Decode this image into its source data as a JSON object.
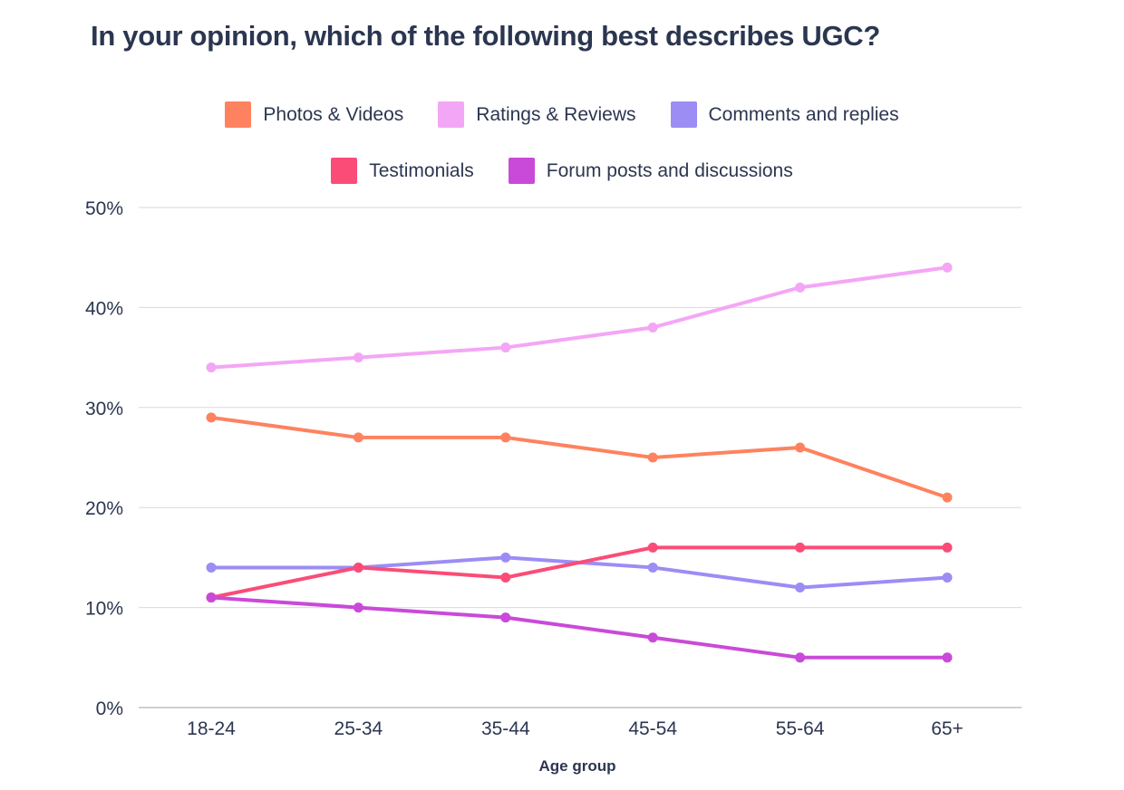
{
  "chart_data": {
    "type": "line",
    "title": "In your opinion, which of the following best describes UGC?",
    "xlabel": "Age group",
    "ylabel": "",
    "categories": [
      "18-24",
      "25-34",
      "35-44",
      "45-54",
      "55-64",
      "65+"
    ],
    "y_ticks": [
      "0%",
      "10%",
      "20%",
      "30%",
      "40%",
      "50%"
    ],
    "ylim": [
      0,
      50
    ],
    "grid": true,
    "legend_position": "top-center",
    "series": [
      {
        "name": "Photos & Videos",
        "color": "#fe825f",
        "values": [
          29,
          27,
          27,
          25,
          26,
          21
        ]
      },
      {
        "name": "Ratings & Reviews",
        "color": "#f4a6f6",
        "values": [
          34,
          35,
          36,
          38,
          42,
          44
        ]
      },
      {
        "name": "Comments and replies",
        "color": "#9b8df4",
        "values": [
          14,
          14,
          15,
          14,
          12,
          13
        ]
      },
      {
        "name": "Testimonials",
        "color": "#fb4c78",
        "values": [
          11,
          14,
          13,
          16,
          16,
          16
        ]
      },
      {
        "name": "Forum posts and discussions",
        "color": "#c94ad8",
        "values": [
          11,
          10,
          9,
          7,
          5,
          5
        ]
      }
    ]
  }
}
